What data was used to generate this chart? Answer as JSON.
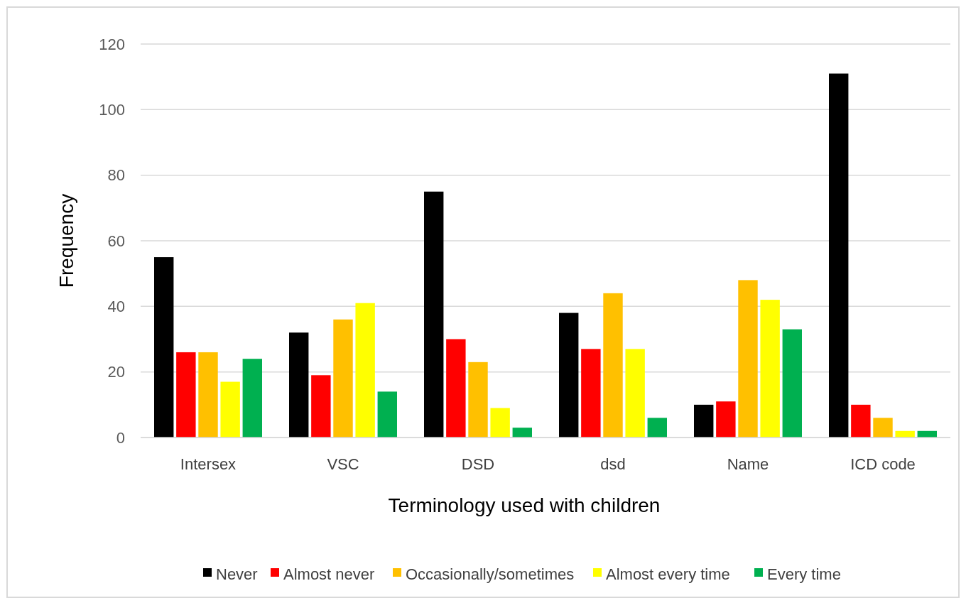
{
  "chart_data": {
    "type": "bar",
    "xlabel": "Terminology used with children",
    "ylabel": "Frequency",
    "categories": [
      "Intersex",
      "VSC",
      "DSD",
      "dsd",
      "Name",
      "ICD code"
    ],
    "series": [
      {
        "name": "Never",
        "color": "#000000",
        "values": [
          55,
          32,
          75,
          38,
          10,
          111
        ]
      },
      {
        "name": "Almost never",
        "color": "#ff0000",
        "values": [
          26,
          19,
          30,
          27,
          11,
          10
        ]
      },
      {
        "name": "Occasionally/sometimes",
        "color": "#ffc000",
        "values": [
          26,
          36,
          23,
          44,
          48,
          6
        ]
      },
      {
        "name": "Almost every time",
        "color": "#ffff00",
        "values": [
          17,
          41,
          9,
          27,
          42,
          2
        ]
      },
      {
        "name": "Every time",
        "color": "#00b050",
        "values": [
          24,
          14,
          3,
          6,
          33,
          2
        ]
      }
    ],
    "ylim": [
      0,
      120
    ],
    "yticks": [
      0,
      20,
      40,
      60,
      80,
      100,
      120
    ],
    "grid": "y",
    "legend": "bottom"
  }
}
